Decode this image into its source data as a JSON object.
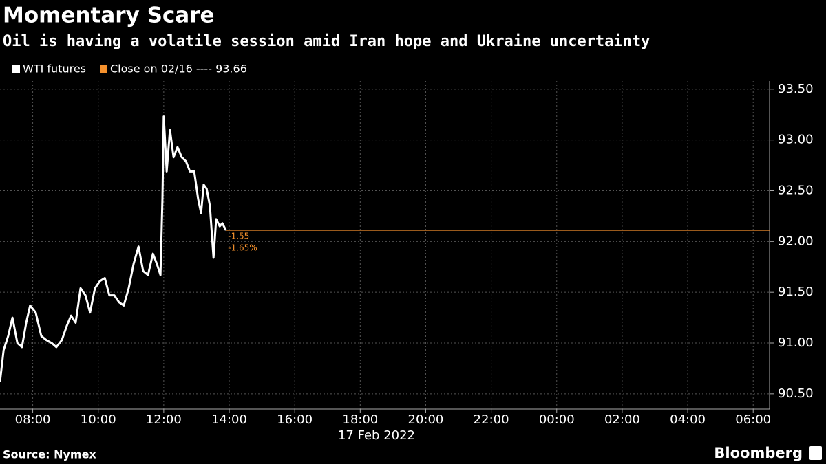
{
  "chart_data": {
    "type": "line",
    "title": "Momentary Scare",
    "subtitle": "Oil is having a volatile session amid Iran hope and Ukraine uncertainty",
    "legend_close": "Close on 02/16 ---- 93.66",
    "date_label": "17 Feb 2022",
    "annotations": [
      "-1.55",
      "-1.65%"
    ],
    "source": "Source: Nymex",
    "brand": "Bloomberg",
    "x": [
      7.0,
      7.11,
      7.25,
      7.38,
      7.53,
      7.67,
      7.8,
      7.92,
      8.09,
      8.26,
      8.41,
      8.58,
      8.72,
      8.89,
      9.04,
      9.17,
      9.31,
      9.46,
      9.61,
      9.75,
      9.9,
      10.05,
      10.2,
      10.34,
      10.49,
      10.64,
      10.78,
      10.93,
      11.08,
      11.23,
      11.37,
      11.52,
      11.67,
      11.79,
      11.9,
      11.96,
      12.0,
      12.09,
      12.19,
      12.3,
      12.42,
      12.55,
      12.68,
      12.8,
      12.93,
      13.05,
      13.14,
      13.22,
      13.31,
      13.41,
      13.52,
      13.6,
      13.71,
      13.79,
      13.9
    ],
    "series": [
      {
        "name": "WTI futures",
        "color": "#ffffff",
        "values": [
          90.62,
          90.93,
          91.07,
          91.25,
          91.0,
          90.96,
          91.2,
          91.37,
          91.3,
          91.07,
          91.03,
          91.0,
          90.96,
          91.03,
          91.17,
          91.27,
          91.2,
          91.54,
          91.47,
          91.3,
          91.54,
          91.61,
          91.64,
          91.47,
          91.47,
          91.4,
          91.37,
          91.54,
          91.78,
          91.95,
          91.71,
          91.67,
          91.88,
          91.78,
          91.67,
          92.42,
          93.23,
          92.69,
          93.1,
          92.83,
          92.93,
          92.83,
          92.79,
          92.69,
          92.69,
          92.42,
          92.28,
          92.56,
          92.52,
          92.35,
          91.84,
          92.22,
          92.15,
          92.18,
          92.11
        ]
      }
    ],
    "close_color": "#f5912d",
    "xlim": [
      7,
      30.5
    ],
    "xticks": [
      {
        "value": 8,
        "label": "08:00"
      },
      {
        "value": 10,
        "label": "10:00"
      },
      {
        "value": 12,
        "label": "12:00"
      },
      {
        "value": 14,
        "label": "14:00"
      },
      {
        "value": 16,
        "label": "16:00"
      },
      {
        "value": 18,
        "label": "18:00"
      },
      {
        "value": 20,
        "label": "20:00"
      },
      {
        "value": 22,
        "label": "22:00"
      },
      {
        "value": 24,
        "label": "00:00"
      },
      {
        "value": 26,
        "label": "02:00"
      },
      {
        "value": 28,
        "label": "04:00"
      },
      {
        "value": 30,
        "label": "06:00"
      }
    ],
    "ylim": [
      90.35,
      93.58
    ],
    "yticks": [
      {
        "value": 90.5,
        "label": "90.50"
      },
      {
        "value": 91,
        "label": "91.00"
      },
      {
        "value": 91.5,
        "label": "91.50"
      },
      {
        "value": 92,
        "label": "92.00"
      },
      {
        "value": 92.5,
        "label": "92.50"
      },
      {
        "value": 93,
        "label": "93.00"
      },
      {
        "value": 93.5,
        "label": "93.50"
      }
    ],
    "grid": true
  }
}
